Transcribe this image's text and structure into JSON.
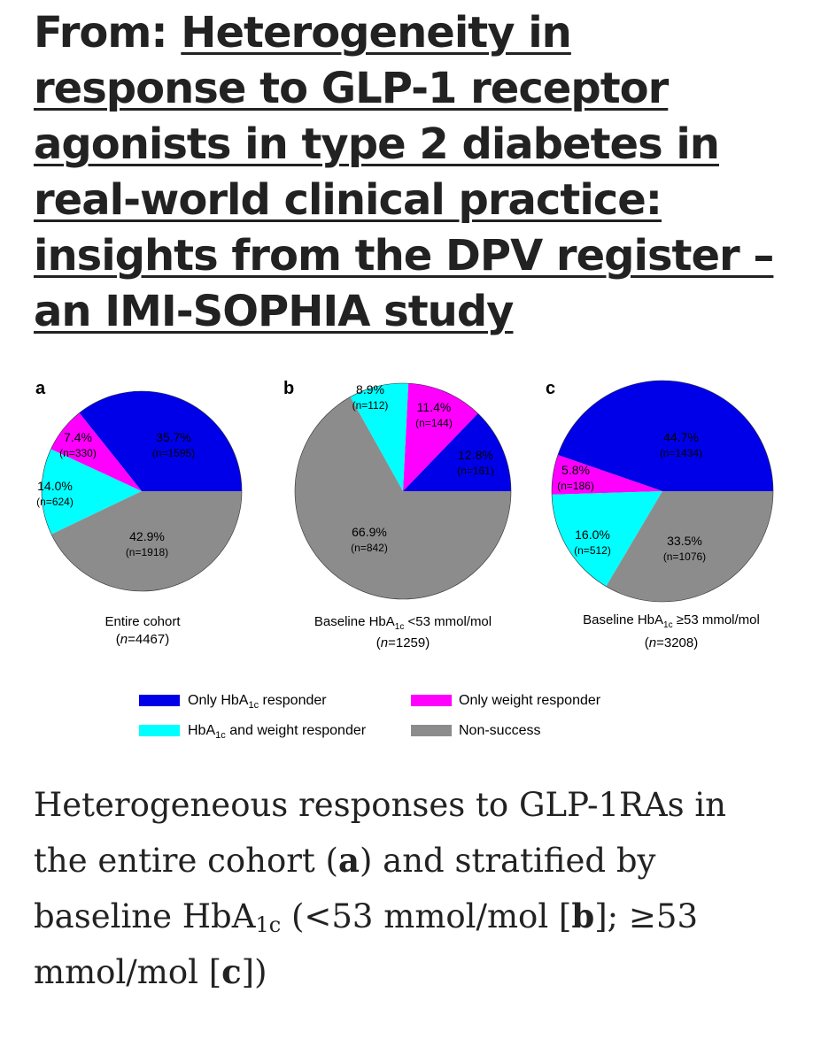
{
  "header": {
    "prefix": "From: ",
    "title": "Heterogeneity in response to GLP-1 receptor agonists in type 2 diabetes in real-world clinical practice: insights from the DPV register – an IMI-SOPHIA study"
  },
  "chart_data": [
    {
      "type": "pie",
      "panel": "a",
      "title": "Entire cohort",
      "subtitle": "(n=4467)",
      "slices": [
        {
          "key": "hba1c",
          "label": "Only HbA1c responder",
          "percent": 35.7,
          "pct_label": "35.7%",
          "n_label": "(n=1595)"
        },
        {
          "key": "weight",
          "label": "Only weight responder",
          "percent": 7.4,
          "pct_label": "7.4%",
          "n_label": "(n=330)"
        },
        {
          "key": "both",
          "label": "HbA1c and weight responder",
          "percent": 14.0,
          "pct_label": "14.0%",
          "n_label": "(n=624)"
        },
        {
          "key": "non",
          "label": "Non-success",
          "percent": 42.9,
          "pct_label": "42.9%",
          "n_label": "(n=1918)"
        }
      ]
    },
    {
      "type": "pie",
      "panel": "b",
      "title": "Baseline HbA1c <53 mmol/mol",
      "subtitle": "(n=1259)",
      "slices": [
        {
          "key": "hba1c",
          "label": "Only HbA1c responder",
          "percent": 12.8,
          "pct_label": "12.8%",
          "n_label": "(n=161)"
        },
        {
          "key": "weight",
          "label": "Only weight responder",
          "percent": 11.4,
          "pct_label": "11.4%",
          "n_label": "(n=144)"
        },
        {
          "key": "both",
          "label": "HbA1c and weight responder",
          "percent": 8.9,
          "pct_label": "8.9%",
          "n_label": "(n=112)"
        },
        {
          "key": "non",
          "label": "Non-success",
          "percent": 66.9,
          "pct_label": "66.9%",
          "n_label": "(n=842)"
        }
      ]
    },
    {
      "type": "pie",
      "panel": "c",
      "title": "Baseline HbA1c ≥53 mmol/mol",
      "subtitle": "(n=3208)",
      "slices": [
        {
          "key": "hba1c",
          "label": "Only HbA1c responder",
          "percent": 44.7,
          "pct_label": "44.7%",
          "n_label": "(n=1434)"
        },
        {
          "key": "weight",
          "label": "Only weight responder",
          "percent": 5.8,
          "pct_label": "5.8%",
          "n_label": "(n=186)"
        },
        {
          "key": "both",
          "label": "HbA1c and weight responder",
          "percent": 16.0,
          "pct_label": "16.0%",
          "n_label": "(n=512)"
        },
        {
          "key": "non",
          "label": "Non-success",
          "percent": 33.5,
          "pct_label": "33.5%",
          "n_label": "(n=1076)"
        }
      ]
    }
  ],
  "legend": [
    {
      "key": "hba1c",
      "label": "Only HbA1c responder"
    },
    {
      "key": "weight",
      "label": "Only weight responder"
    },
    {
      "key": "both",
      "label": "HbA1c and weight responder"
    },
    {
      "key": "non",
      "label": "Non-success"
    }
  ],
  "colors": {
    "hba1c": "#0000e8",
    "weight": "#ff00ff",
    "both": "#00ffff",
    "non": "#8c8c8c"
  },
  "caption": {
    "text_1": "Heterogeneous responses to GLP-1RAs in the entire cohort (",
    "a": "a",
    "text_2": ") and stratified by baseline HbA",
    "sub": "1c",
    "text_3": " (<53 mmol/mol [",
    "b": "b",
    "text_4": "]; ≥53 mmol/mol [",
    "c": "c",
    "text_5": "])"
  }
}
